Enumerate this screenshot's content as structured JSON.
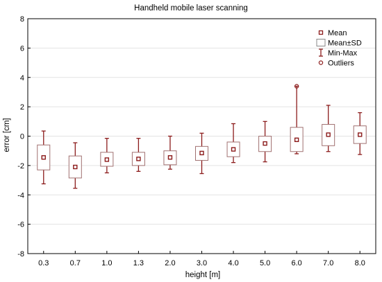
{
  "chart_data": {
    "type": "box",
    "title": "Handheld mobile laser scanning",
    "xlabel": "height [m]",
    "ylabel": "error [cm]",
    "ylim": [
      -8,
      8
    ],
    "yticks": [
      8,
      6,
      4,
      2,
      0,
      -2,
      -4,
      -6,
      -8
    ],
    "grid": "horizontal",
    "legend_position": "top-right",
    "categories": [
      "0.3",
      "0.7",
      "1.0",
      "1.3",
      "2.0",
      "3.0",
      "4.0",
      "5.0",
      "6.0",
      "7.0",
      "8.0"
    ],
    "mean": [
      -1.45,
      -2.1,
      -1.6,
      -1.55,
      -1.45,
      -1.15,
      -0.9,
      -0.5,
      -0.25,
      0.1,
      0.1
    ],
    "sd_low": [
      -2.3,
      -2.85,
      -2.05,
      -2.0,
      -1.95,
      -1.65,
      -1.4,
      -1.05,
      -1.05,
      -0.65,
      -0.5
    ],
    "sd_high": [
      -0.6,
      -1.35,
      -1.1,
      -1.1,
      -1.0,
      -0.7,
      -0.4,
      0.0,
      0.6,
      0.8,
      0.7
    ],
    "min": [
      -3.25,
      -3.55,
      -2.5,
      -2.4,
      -2.25,
      -2.55,
      -1.8,
      -1.75,
      -1.2,
      -1.05,
      -1.25
    ],
    "max": [
      0.35,
      -0.45,
      -0.15,
      -0.15,
      0.0,
      0.2,
      0.85,
      1.0,
      3.4,
      2.1,
      1.6
    ],
    "outliers": [
      [],
      [],
      [],
      [],
      [],
      [],
      [],
      [],
      [
        3.4
      ],
      [],
      []
    ],
    "legend": [
      {
        "key": "mean",
        "label": "Mean"
      },
      {
        "key": "box",
        "label": "Mean±SD"
      },
      {
        "key": "whisker",
        "label": "Min-Max"
      },
      {
        "key": "outlier",
        "label": "Outliers"
      }
    ],
    "colors": {
      "whisker": "#8b1a1a",
      "box": "#a07070",
      "mean": "#8b1a1a",
      "grid": "#e3e3e3",
      "axis": "#000000"
    }
  }
}
